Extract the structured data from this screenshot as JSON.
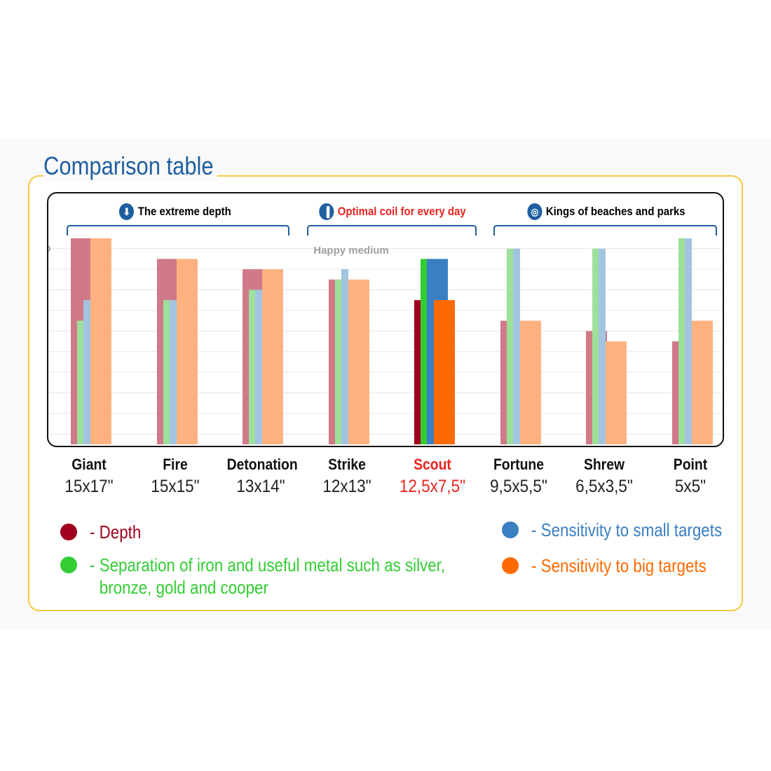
{
  "title": "Comparison table",
  "groups": [
    {
      "label": "The extreme depth",
      "icon": "arrow-down-icon",
      "color": "#111111"
    },
    {
      "label": "Optimal coil for every day",
      "icon": "bar-chart-icon",
      "color": "#e8231e"
    },
    {
      "label": "Kings of beaches and parks",
      "icon": "target-icon",
      "color": "#111111"
    }
  ],
  "happy_medium": "Happy medium",
  "chart_data": {
    "type": "bar",
    "categories": [
      "Giant",
      "Fire",
      "Detonation",
      "Strike",
      "Scout",
      "Fortune",
      "Shrew",
      "Point"
    ],
    "sizes": [
      "15x17\"",
      "15x15\"",
      "13x14\"",
      "12x13\"",
      "12,5x7,5\"",
      "9,5x5,5\"",
      "6,5x3,5\"",
      "5x5\""
    ],
    "highlight": "Scout",
    "y_ticks": [
      1,
      2,
      3,
      4,
      5,
      6,
      7,
      8,
      9,
      10
    ],
    "ylim": [
      0.5,
      10.5
    ],
    "grid": true,
    "series": [
      {
        "key": "depth",
        "color": "#d07a88",
        "highlight_color": "#a0001e",
        "values": [
          10.5,
          9.5,
          9.0,
          8.5,
          7.5,
          6.5,
          6.0,
          5.5
        ]
      },
      {
        "key": "separation",
        "color": "#9de09a",
        "highlight_color": "#33cc33",
        "values": [
          6.5,
          7.5,
          8.0,
          8.5,
          9.5,
          10.0,
          10.0,
          10.5
        ]
      },
      {
        "key": "small",
        "color": "#a2c4e0",
        "highlight_color": "#3a7fc1",
        "values": [
          7.5,
          7.5,
          8.0,
          9.0,
          9.5,
          10.0,
          10.0,
          10.5
        ]
      },
      {
        "key": "big",
        "color": "#ffb27f",
        "highlight_color": "#ff6a00",
        "values": [
          10.5,
          9.5,
          9.0,
          8.5,
          7.5,
          6.5,
          5.5,
          6.5
        ]
      }
    ]
  },
  "legend": [
    {
      "color": "#a0001e",
      "label": "- Depth"
    },
    {
      "color": "#33cc33",
      "label": "- Separation of iron and useful metal such as silver,",
      "label2": "bronze, gold and cooper"
    },
    {
      "color": "#3a7fc1",
      "label": "- Sensitivity to small targets"
    },
    {
      "color": "#ff6a00",
      "label": "- Sensitivity to big targets"
    }
  ]
}
